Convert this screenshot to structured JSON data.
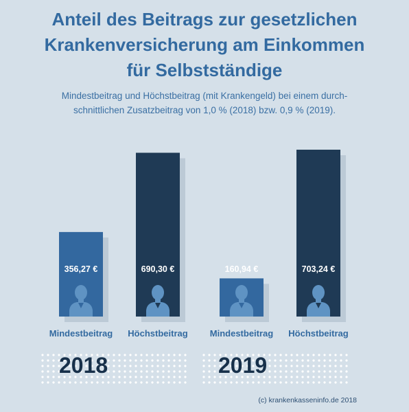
{
  "title": [
    "Anteil des Beitrags zur gesetzlichen",
    "Krankenversicherung am Einkommen",
    "für Selbstständige"
  ],
  "subtitle": [
    "Mindestbeitrag und Höchstbeitrag (mit Krankengeld) bei einem durch-",
    "schnittlichen Zusatzbeitrag von 1,0 % (2018) bzw. 0,9 % (2019)."
  ],
  "credit": "(c) krankenkasseninfo.de 2018",
  "colors": {
    "background": "#d5e0e9",
    "mindest": "#33689f",
    "hoechst": "#1f3a55",
    "title": "#336aa0",
    "shadow": "#bccad6",
    "icon": "#5f93c3"
  },
  "chart_data": {
    "type": "bar",
    "groups": [
      "2018",
      "2019"
    ],
    "categories": [
      "Mindestbeitrag",
      "Höchstbeitrag",
      "Mindestbeitrag",
      "Höchstbeitrag"
    ],
    "values": [
      356.27,
      690.3,
      160.94,
      703.24
    ],
    "value_labels": [
      "356,27 €",
      "690,30 €",
      "160,94 €",
      "703,24 €"
    ],
    "year_index": [
      0,
      0,
      1,
      1
    ],
    "series_type": [
      "mindest",
      "hoechst",
      "mindest",
      "hoechst"
    ],
    "unit": "€",
    "grid": false,
    "legend": "none"
  }
}
